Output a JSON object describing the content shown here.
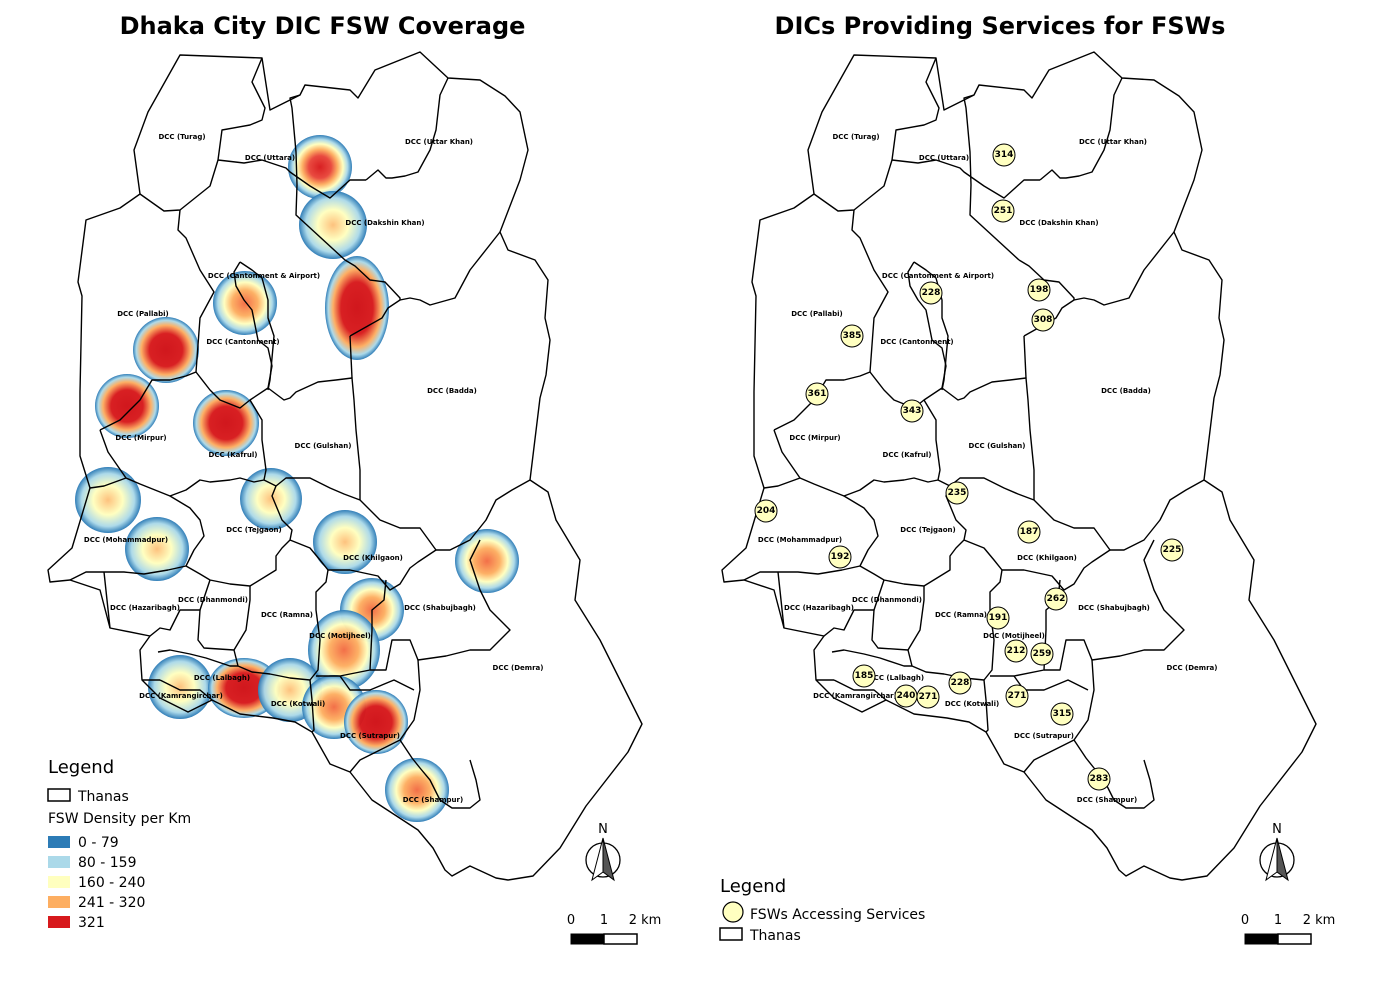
{
  "maps": {
    "left": {
      "title": "Dhaka City DIC FSW Coverage",
      "legend": {
        "title": "Legend",
        "thanas_label": "Thanas",
        "density_title": "FSW Density per Km",
        "classes": [
          {
            "label": "0 - 79",
            "color": "#2c7bb6"
          },
          {
            "label": "80 - 159",
            "color": "#abd9e9"
          },
          {
            "label": "160 - 240",
            "color": "#ffffbf"
          },
          {
            "label": "241 - 320",
            "color": "#fdae61"
          },
          {
            "label": "321",
            "color": "#d7191c"
          }
        ]
      }
    },
    "right": {
      "title": "DICs Providing Services for FSWs",
      "legend": {
        "title": "Legend",
        "fsw_label": "FSWs Accessing Services",
        "thanas_label": "Thanas"
      },
      "fsw_counts": [
        314,
        251,
        228,
        198,
        308,
        385,
        361,
        343,
        235,
        204,
        187,
        192,
        225,
        262,
        191,
        212,
        259,
        185,
        228,
        240,
        271,
        271,
        315,
        283
      ],
      "bubble_color": "#ffffc0"
    }
  },
  "thana_labels": [
    "DCC (Turag)",
    "DCC (Uttara)",
    "DCC (Uttar Khan)",
    "DCC (Dakshin Khan)",
    "DCC (Cantonment & Airport)",
    "DCC (Pallabi)",
    "DCC (Cantonment)",
    "DCC (Badda)",
    "DCC (Mirpur)",
    "DCC (Kafrul)",
    "DCC (Gulshan)",
    "DCC (Tejgaon)",
    "DCC (Mohammadpur)",
    "DCC (Khilgaon)",
    "DCC (Dhanmondi)",
    "DCC (Hazaribagh)",
    "DCC (Ramna)",
    "DCC (Shabujbagh)",
    "DCC (Motijheel)",
    "DCC (Demra)",
    "DCC (Lalbagh)",
    "DCC (Kamrangirchar)",
    "DCC (Kotwali)",
    "DCC (Sutrapur)",
    "DCC (Shampur)"
  ],
  "north_arrow": {
    "label": "N"
  },
  "scale_bar": {
    "ticks": [
      "0",
      "1",
      "2 km"
    ]
  }
}
